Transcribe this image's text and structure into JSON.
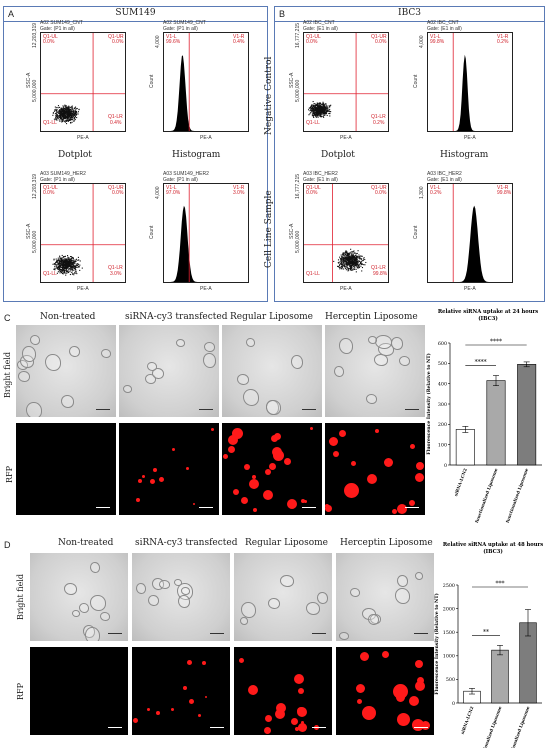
{
  "panelA": {
    "letter": "A",
    "title": "SUM149",
    "top_left": {
      "name": "A02 SUM149_CNT",
      "gate": "Gate: (P1 in all)",
      "ymax": "12,203,319",
      "ymid": "5,000,000",
      "ul": "Q1-UL",
      "ul_val": "0.0%",
      "ur": "Q1-UR",
      "ur_val": "0.0%",
      "ll": "Q1-LL",
      "lr": "Q1-LR",
      "lr_val": "0.4%",
      "xlabel": "PE-A",
      "ylabel": "SSC-A"
    },
    "top_right": {
      "name": "A02 SUM149_CNT",
      "gate": "Gate: (P1 in all)",
      "ymax": "4,000",
      "l": "V1-L",
      "l_val": "99.6%",
      "r": "V1-R",
      "r_val": "0.4%",
      "xlabel": "PE-A",
      "ylabel": "Count"
    },
    "bot_left": {
      "name": "A03 SUM149_HER2",
      "gate": "Gate: (P1 in all)",
      "ymax": "12,203,319",
      "ymid": "5,000,000",
      "ul": "Q1-UL",
      "ul_val": "0.0%",
      "ur": "Q1-UR",
      "ur_val": "0.0%",
      "ll": "Q1-LL",
      "lr": "Q1-LR",
      "lr_val": "3.0%",
      "xlabel": "PE-A",
      "ylabel": "SSC-A"
    },
    "bot_right": {
      "name": "A03 SUM149_HER2",
      "gate": "Gate: (P1 in all)",
      "ymax": "4,000",
      "l": "V1-L",
      "l_val": "97.0%",
      "r": "V1-R",
      "r_val": "3.0%",
      "xlabel": "PE-A",
      "ylabel": "Count"
    },
    "cap_dot": "Dotplot",
    "cap_hist": "Histogram"
  },
  "panelB": {
    "letter": "B",
    "title": "IBC3",
    "row1": "Negative Control",
    "row2": "Cell Line Sample",
    "top_left": {
      "name": "A02 IBC_CNT",
      "gate": "Gate: (E1 in all)",
      "ymax": "16,777,215",
      "ymid": "5,000,000",
      "ul": "Q1-UL",
      "ul_val": "0.0%",
      "ur": "Q1-UR",
      "ur_val": "0.0%",
      "ll": "Q1-LL",
      "lr": "Q1-LR",
      "lr_val": "0.2%",
      "xlabel": "PE-A",
      "ylabel": "SSC-A"
    },
    "top_right": {
      "name": "A02 IBC_CNT",
      "gate": "Gate: (E1 in all)",
      "ymax": "4,000",
      "l": "V1-L",
      "l_val": "99.8%",
      "r": "V1-R",
      "r_val": "0.2%",
      "xlabel": "PE-A",
      "ylabel": "Count"
    },
    "bot_left": {
      "name": "A03 IBC_HER2",
      "gate": "Gate: (E1 in all)",
      "ymax": "16,777,215",
      "ymid": "5,000,000",
      "ul": "Q1-UL",
      "ul_val": "0.0%",
      "ur": "Q1-UR",
      "ur_val": "0.0%",
      "ll": "Q1-LL",
      "lr": "Q1-LR",
      "lr_val": "99.8%",
      "xlabel": "PE-A",
      "ylabel": "SSC-A"
    },
    "bot_right": {
      "name": "A03 IBC_HER2",
      "gate": "Gate: (E1 in all)",
      "ymax": "1,300",
      "l": "V1-L",
      "l_val": "0.2%",
      "r": "V1-R",
      "r_val": "99.8%",
      "xlabel": "PE-A",
      "ylabel": "Count"
    },
    "cap_dot": "Dotplot",
    "cap_hist": "Histogram"
  },
  "panelC": {
    "letter": "C",
    "cols": [
      "Non-treated",
      "siRNA-cy3 transfected",
      "Regular Liposome",
      "Herceptin Liposome"
    ],
    "row1": "Bright field",
    "row2": "RFP"
  },
  "panelD": {
    "letter": "D",
    "cols": [
      "Non-treated",
      "siRNA-cy3 transfected",
      "Regular Liposome",
      "Herceptin Liposome"
    ],
    "row1": "Bright field",
    "row2": "RFP"
  },
  "chart_data": [
    {
      "type": "bar",
      "title": "Relative siRNA uptake at 24 hours",
      "subtitle": "(IBC3)",
      "ylabel": "Fluorescence Intensity (Relative to NT)",
      "categories": [
        "siRNA-LCN2",
        "Non-functionalized Liposome",
        "Herceptin-functionalized Liposome"
      ],
      "values": [
        175,
        415,
        495
      ],
      "errors": [
        15,
        25,
        12
      ],
      "ylim": [
        0,
        600
      ],
      "yticks": [
        "0",
        "100",
        "200",
        "300",
        "400",
        "500",
        "600"
      ],
      "colors": [
        "#ffffff",
        "#a9a9a9",
        "#7d7d7d"
      ],
      "sig": [
        {
          "from": 0,
          "to": 1,
          "label": "****"
        },
        {
          "from": 0,
          "to": 2,
          "label": "****"
        }
      ]
    },
    {
      "type": "bar",
      "title": "Relative siRNA uptake at 48 hours",
      "subtitle": "(IBC3)",
      "ylabel": "Fluorescence Intensity (Relative to NT)",
      "categories": [
        "siRNA-LCN2",
        "Non-functionalized Liposome",
        "Herceptin-functionalized Liposome"
      ],
      "values": [
        250,
        1120,
        1700
      ],
      "errors": [
        60,
        100,
        280
      ],
      "ylim": [
        0,
        2500
      ],
      "yticks": [
        "0",
        "500",
        "1000",
        "1500",
        "2000",
        "2500"
      ],
      "colors": [
        "#ffffff",
        "#a9a9a9",
        "#7d7d7d"
      ],
      "sig": [
        {
          "from": 0,
          "to": 1,
          "label": "**"
        },
        {
          "from": 0,
          "to": 2,
          "label": "***"
        }
      ]
    }
  ]
}
